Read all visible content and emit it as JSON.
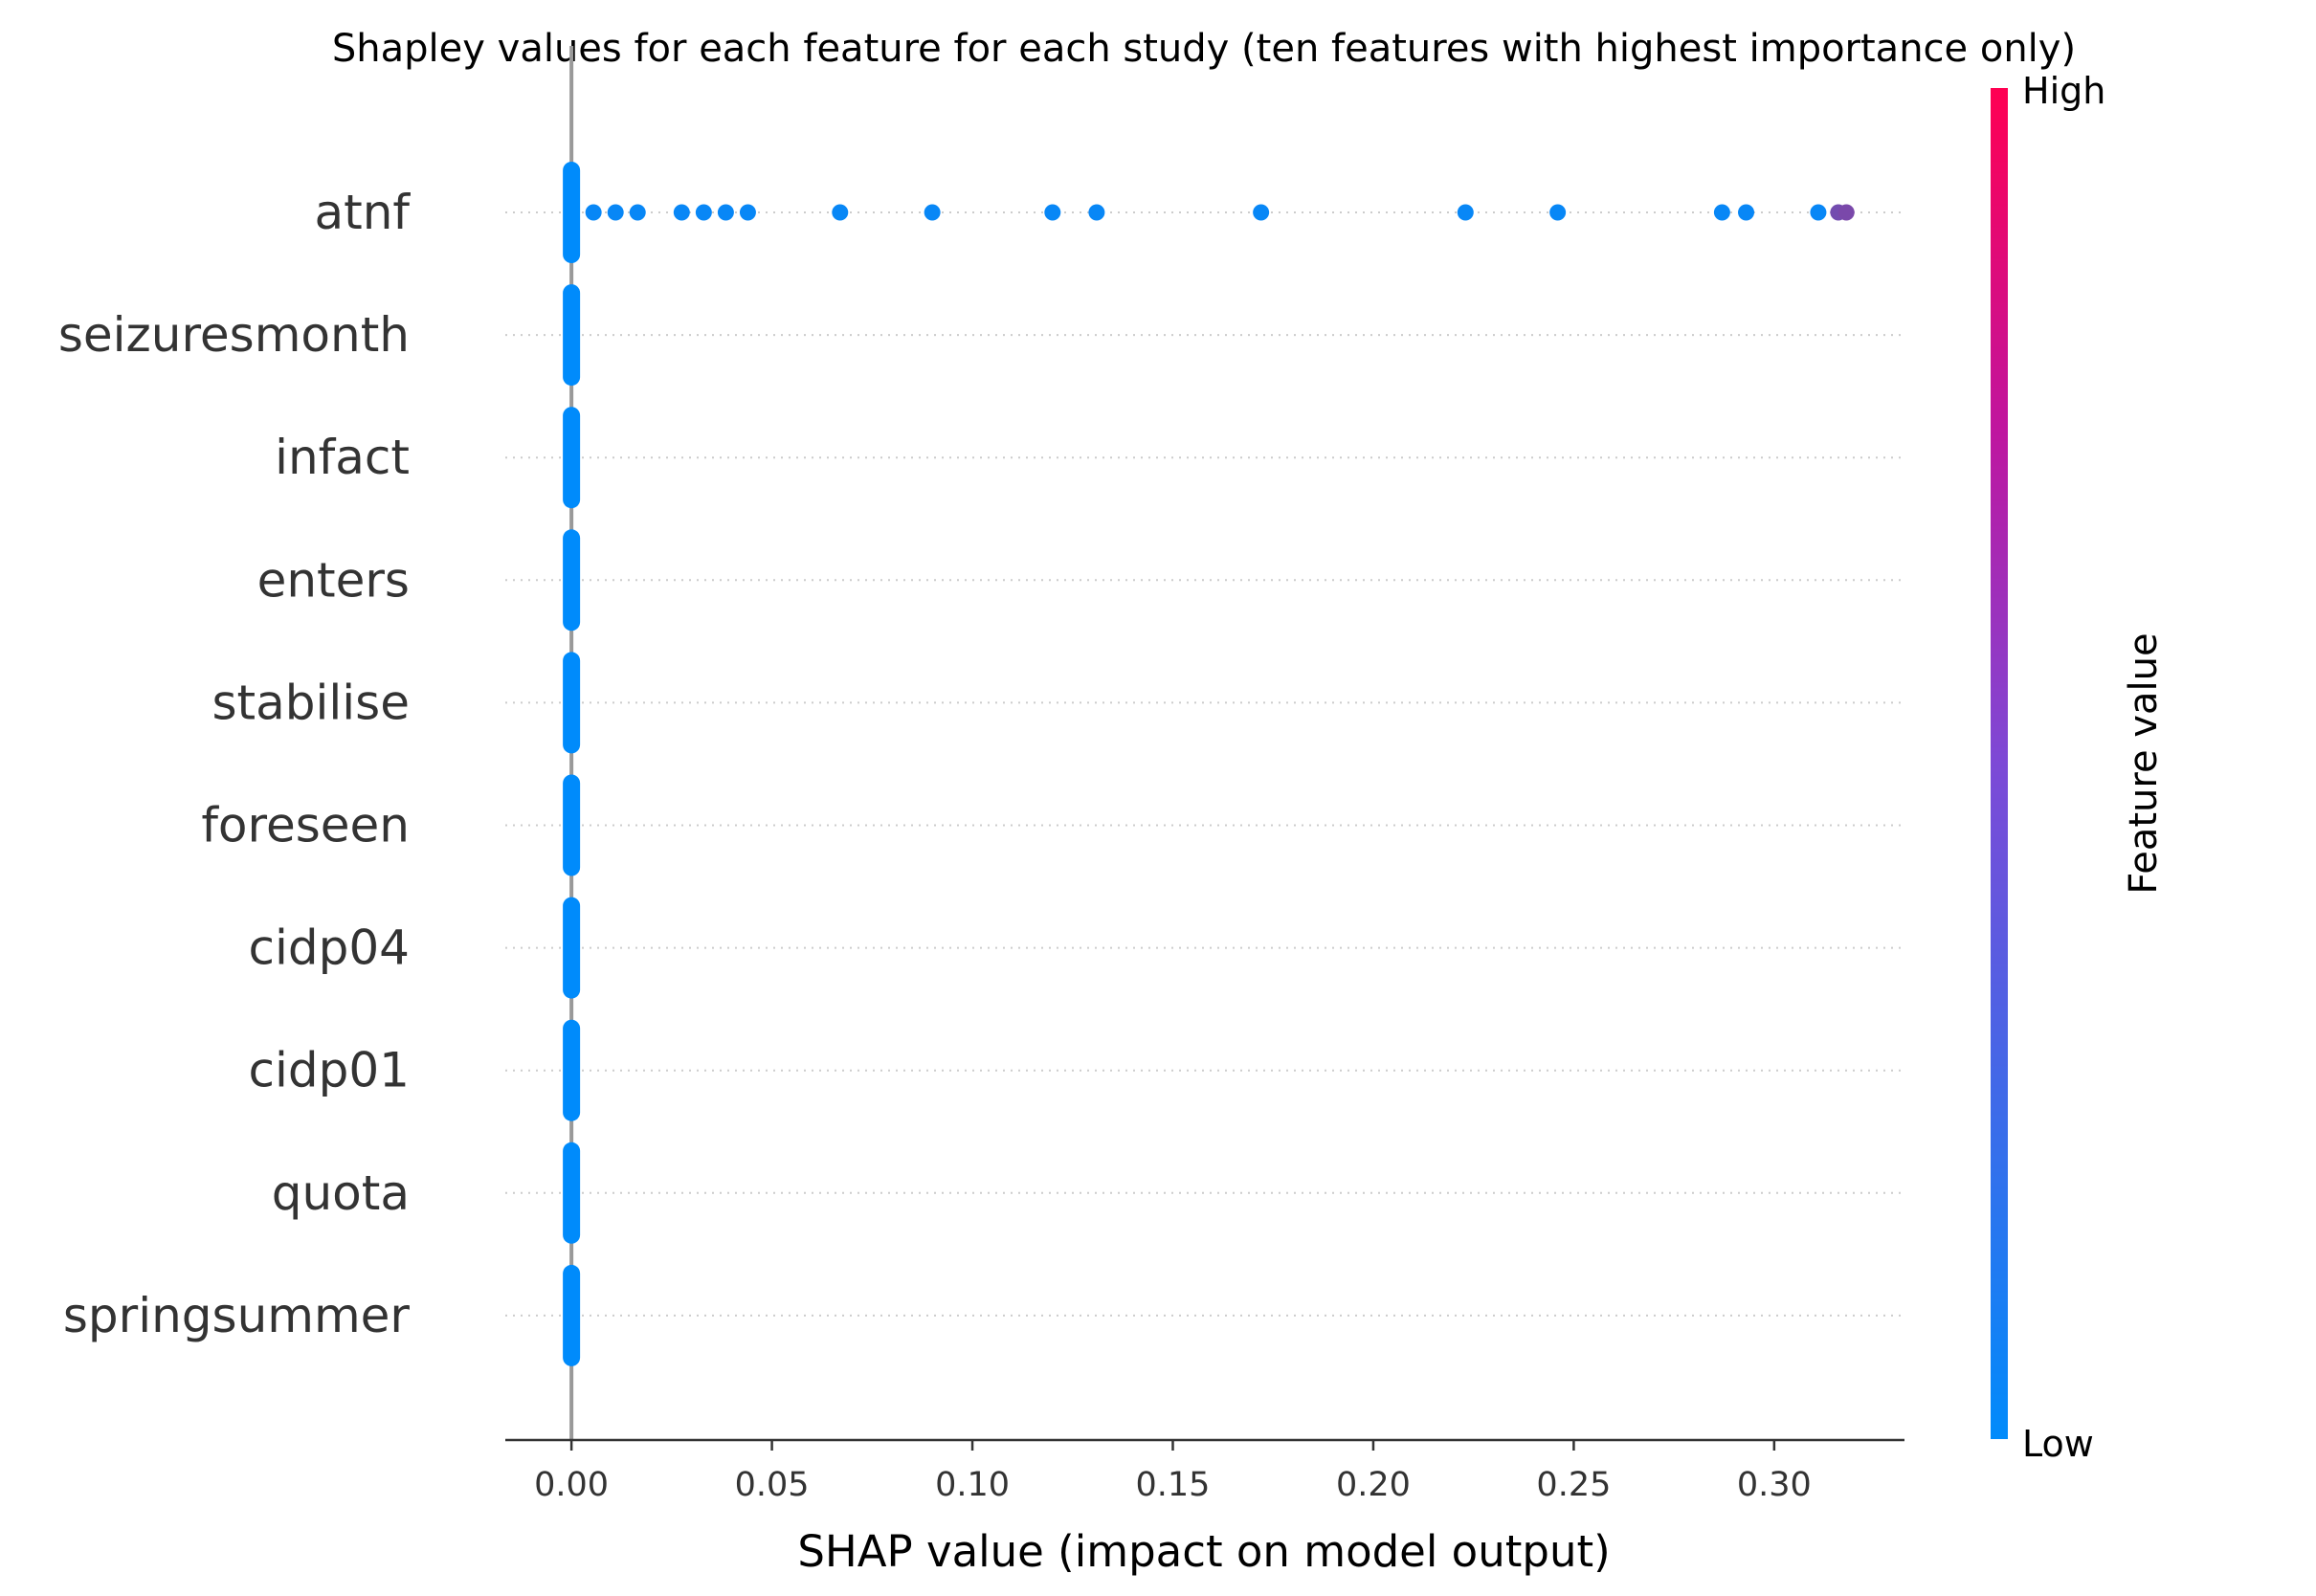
{
  "chart_data": {
    "type": "scatter",
    "title": "Shapley values for each feature for each study (ten features with highest importance only)",
    "xlabel": "SHAP value (impact on model output)",
    "xlim": [
      -0.0165,
      0.3325
    ],
    "xticks": [
      0.0,
      0.05,
      0.1,
      0.15,
      0.2,
      0.25,
      0.3
    ],
    "xtick_labels": [
      "0.00",
      "0.05",
      "0.10",
      "0.15",
      "0.20",
      "0.25",
      "0.30"
    ],
    "features": [
      "atnf",
      "seizuresmonth",
      "infact",
      "enters",
      "stabilise",
      "foreseen",
      "cidp04",
      "cidp01",
      "quota",
      "springsummer"
    ],
    "colorbar": {
      "label": "Feature value",
      "high": "High",
      "low": "Low"
    },
    "colors": {
      "low": "#008bfb",
      "high": "#ff0052",
      "zero_line": "#999999",
      "grid": "#cccccc"
    },
    "series": [
      {
        "feature": "atnf",
        "points": [
          {
            "x": 0.0055,
            "v": 0.03
          },
          {
            "x": 0.011,
            "v": 0.03
          },
          {
            "x": 0.0165,
            "v": 0.03
          },
          {
            "x": 0.0275,
            "v": 0.03
          },
          {
            "x": 0.033,
            "v": 0.03
          },
          {
            "x": 0.0385,
            "v": 0.03
          },
          {
            "x": 0.044,
            "v": 0.03
          },
          {
            "x": 0.067,
            "v": 0.03
          },
          {
            "x": 0.09,
            "v": 0.03
          },
          {
            "x": 0.12,
            "v": 0.03
          },
          {
            "x": 0.131,
            "v": 0.03
          },
          {
            "x": 0.172,
            "v": 0.03
          },
          {
            "x": 0.223,
            "v": 0.03
          },
          {
            "x": 0.246,
            "v": 0.03
          },
          {
            "x": 0.287,
            "v": 0.03
          },
          {
            "x": 0.293,
            "v": 0.03
          },
          {
            "x": 0.311,
            "v": 0.03
          },
          {
            "x": 0.316,
            "v": 0.45
          },
          {
            "x": 0.318,
            "v": 0.48
          }
        ],
        "cluster_at_zero": true
      },
      {
        "feature": "seizuresmonth",
        "points": [],
        "cluster_at_zero": true
      },
      {
        "feature": "infact",
        "points": [],
        "cluster_at_zero": true
      },
      {
        "feature": "enters",
        "points": [],
        "cluster_at_zero": true
      },
      {
        "feature": "stabilise",
        "points": [],
        "cluster_at_zero": true
      },
      {
        "feature": "foreseen",
        "points": [],
        "cluster_at_zero": true
      },
      {
        "feature": "cidp04",
        "points": [],
        "cluster_at_zero": true
      },
      {
        "feature": "cidp01",
        "points": [],
        "cluster_at_zero": true
      },
      {
        "feature": "quota",
        "points": [],
        "cluster_at_zero": true
      },
      {
        "feature": "springsummer",
        "points": [],
        "cluster_at_zero": true
      }
    ]
  }
}
